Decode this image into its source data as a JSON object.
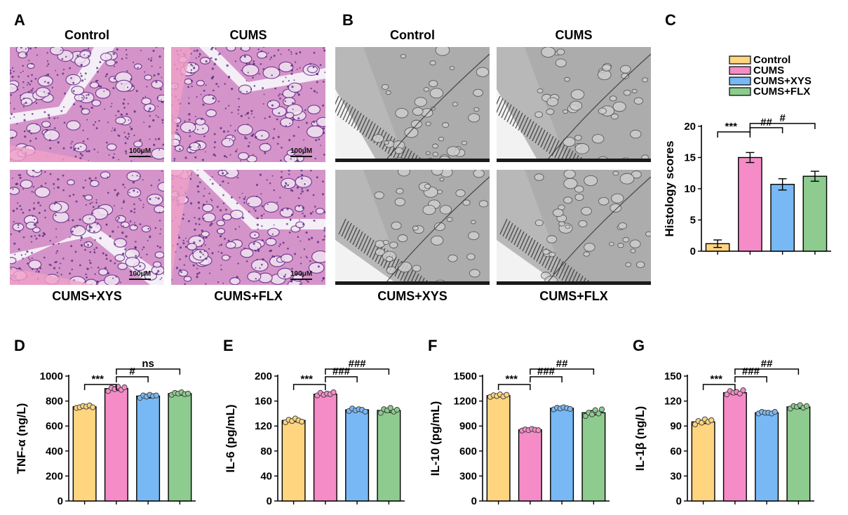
{
  "panels": {
    "A": {
      "letter": "A",
      "labels": [
        "Control",
        "CUMS",
        "CUMS+XYS",
        "CUMS+FLX"
      ],
      "scale_bar": "100μM"
    },
    "B": {
      "letter": "B",
      "labels": [
        "Control",
        "CUMS",
        "CUMS+XYS",
        "CUMS+FLX"
      ]
    }
  },
  "groups": [
    "Control",
    "CUMS",
    "CUMS+XYS",
    "CUMS+FLX"
  ],
  "colors": {
    "Control": "#FFD580",
    "CUMS": "#F58CC8",
    "CUMS+XYS": "#78B9F5",
    "CUMS+FLX": "#8DCB8E"
  },
  "chart_data": [
    {
      "panel": "C",
      "type": "bar",
      "ylabel": "Histology scores",
      "ylim": [
        0,
        20
      ],
      "yticks": [
        0,
        5,
        10,
        15,
        20
      ],
      "legend": [
        "Control",
        "CUMS",
        "CUMS+XYS",
        "CUMS+FLX"
      ],
      "legend_position": "top",
      "categories": [
        "Control",
        "CUMS",
        "CUMS+XYS",
        "CUMS+FLX"
      ],
      "values": [
        1.2,
        15.0,
        10.7,
        12.0
      ],
      "errors": [
        0.6,
        0.8,
        0.9,
        0.8
      ],
      "points": [],
      "significance": [
        {
          "from": 0,
          "to": 1,
          "label": "***"
        },
        {
          "from": 1,
          "to": 2,
          "label": "##"
        },
        {
          "from": 1,
          "to": 3,
          "label": "#"
        }
      ]
    },
    {
      "panel": "D",
      "type": "bar",
      "ylabel": "TNF-α (ng/L)",
      "ylim": [
        0,
        1000
      ],
      "yticks": [
        0,
        200,
        400,
        600,
        800,
        1000
      ],
      "categories": [
        "Control",
        "CUMS",
        "CUMS+XYS",
        "CUMS+FLX"
      ],
      "values": [
        755,
        900,
        840,
        860
      ],
      "errors": [
        12,
        15,
        15,
        12
      ],
      "points": [
        [
          745,
          750,
          760,
          755,
          765,
          750
        ],
        [
          880,
          905,
          895,
          915,
          890,
          910
        ],
        [
          825,
          845,
          835,
          850,
          840,
          845
        ],
        [
          850,
          865,
          860,
          870,
          855,
          860
        ]
      ],
      "significance": [
        {
          "from": 0,
          "to": 1,
          "label": "***"
        },
        {
          "from": 1,
          "to": 2,
          "label": "#"
        },
        {
          "from": 1,
          "to": 3,
          "label": "ns"
        }
      ]
    },
    {
      "panel": "E",
      "type": "bar",
      "ylabel": "IL-6 (pg/mL)",
      "ylim": [
        0,
        200
      ],
      "yticks": [
        0,
        40,
        80,
        120,
        160,
        200
      ],
      "categories": [
        "Control",
        "CUMS",
        "CUMS+XYS",
        "CUMS+FLX"
      ],
      "values": [
        129,
        171,
        146,
        145
      ],
      "errors": [
        2,
        2,
        2,
        3
      ],
      "points": [
        [
          126,
          130,
          128,
          132,
          129,
          127
        ],
        [
          169,
          173,
          170,
          172,
          171,
          174
        ],
        [
          144,
          148,
          145,
          147,
          146,
          143
        ],
        [
          141,
          147,
          145,
          149,
          143,
          146
        ]
      ],
      "significance": [
        {
          "from": 0,
          "to": 1,
          "label": "***"
        },
        {
          "from": 1,
          "to": 2,
          "label": "###"
        },
        {
          "from": 1,
          "to": 3,
          "label": "###"
        }
      ]
    },
    {
      "panel": "F",
      "type": "bar",
      "ylabel": "IL-10 (pg/mL)",
      "ylim": [
        0,
        1500
      ],
      "yticks": [
        0,
        300,
        600,
        900,
        1200,
        1500
      ],
      "categories": [
        "Control",
        "CUMS",
        "CUMS+XYS",
        "CUMS+FLX"
      ],
      "values": [
        1265,
        855,
        1115,
        1060
      ],
      "errors": [
        15,
        12,
        15,
        25
      ],
      "points": [
        [
          1250,
          1270,
          1260,
          1280,
          1255,
          1275
        ],
        [
          845,
          860,
          850,
          865,
          855,
          850
        ],
        [
          1100,
          1120,
          1110,
          1125,
          1115,
          1105
        ],
        [
          1020,
          1060,
          1040,
          1090,
          1050,
          1100
        ]
      ],
      "significance": [
        {
          "from": 0,
          "to": 1,
          "label": "***"
        },
        {
          "from": 1,
          "to": 2,
          "label": "###"
        },
        {
          "from": 1,
          "to": 3,
          "label": "##"
        }
      ]
    },
    {
      "panel": "G",
      "type": "bar",
      "ylabel": "IL-1β (ng/L)",
      "ylim": [
        0,
        150
      ],
      "yticks": [
        0,
        30,
        60,
        90,
        120,
        150
      ],
      "categories": [
        "Control",
        "CUMS",
        "CUMS+XYS",
        "CUMS+FLX"
      ],
      "values": [
        95,
        130,
        106,
        113
      ],
      "errors": [
        2,
        2,
        1,
        2
      ],
      "points": [
        [
          92,
          96,
          94,
          98,
          95,
          97
        ],
        [
          128,
          132,
          130,
          131,
          129,
          133
        ],
        [
          105,
          107,
          106,
          106,
          105,
          107
        ],
        [
          111,
          114,
          113,
          115,
          112,
          114
        ]
      ],
      "significance": [
        {
          "from": 0,
          "to": 1,
          "label": "***"
        },
        {
          "from": 1,
          "to": 2,
          "label": "###"
        },
        {
          "from": 1,
          "to": 3,
          "label": "##"
        }
      ]
    }
  ]
}
